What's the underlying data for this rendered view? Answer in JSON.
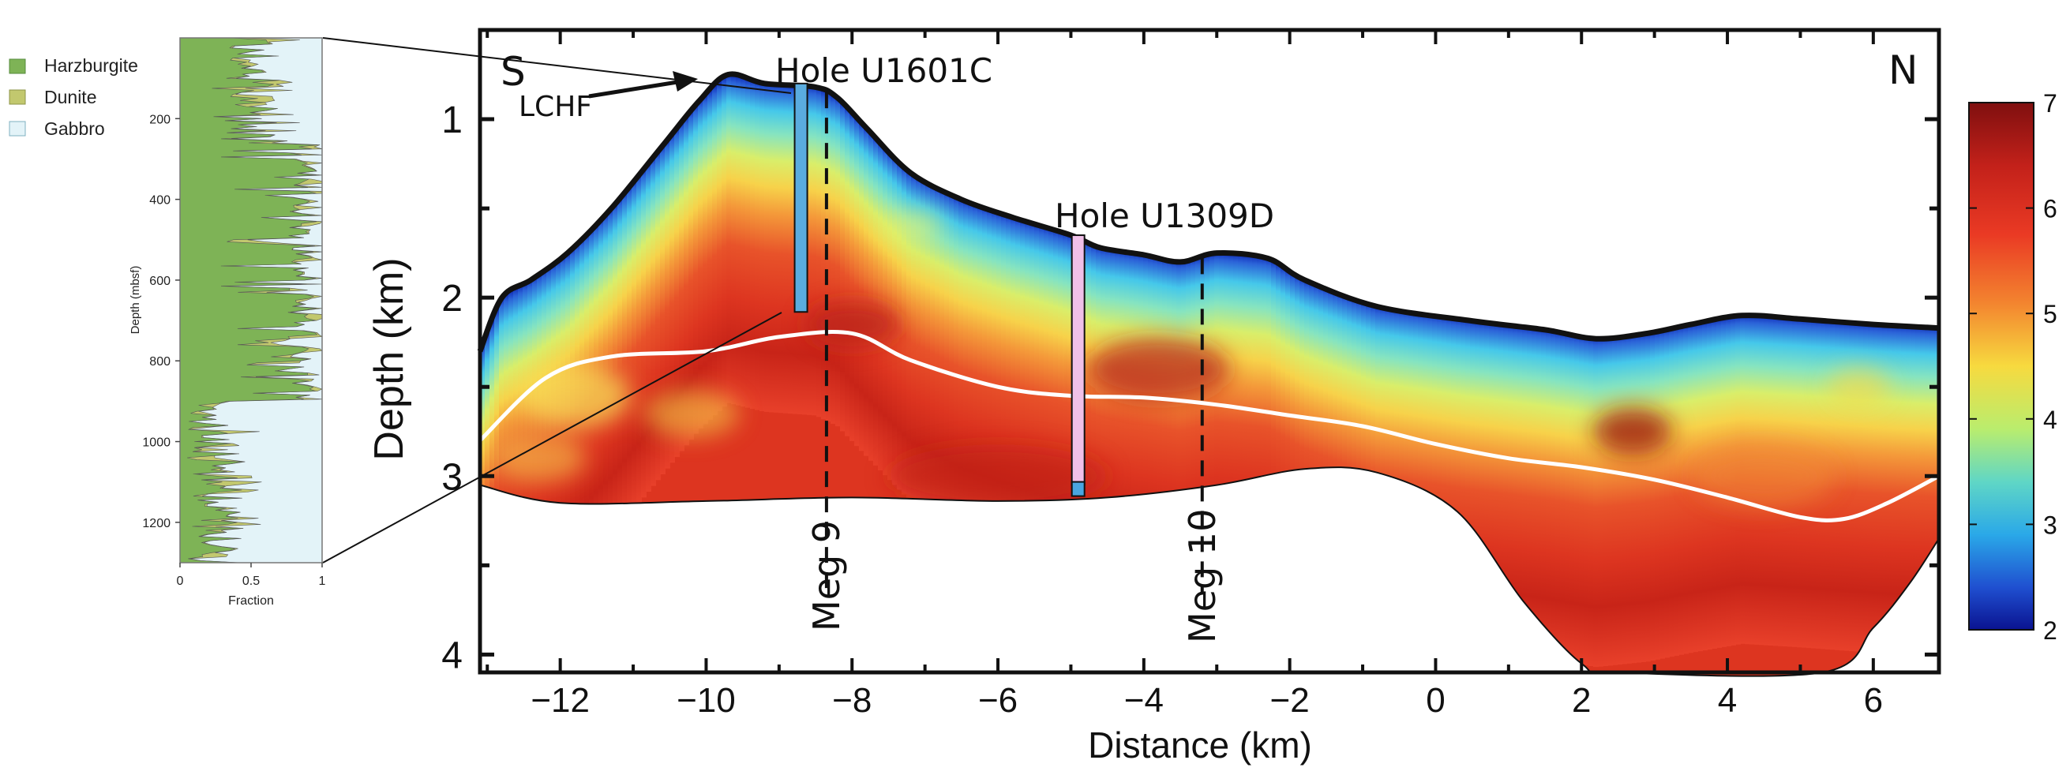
{
  "chart_data": [
    {
      "type": "area",
      "title": "",
      "xlabel": "Fraction",
      "ylabel": "Depth (mbsf)",
      "xlim": [
        0,
        1
      ],
      "ylim": [
        1300,
        0
      ],
      "x_ticks": [
        "0",
        "0.5",
        "1"
      ],
      "y_ticks": [
        "200",
        "400",
        "600",
        "800",
        "1000",
        "1200"
      ],
      "legend": [
        {
          "label": "Harzburgite",
          "color": "#7eb356"
        },
        {
          "label": "Dunite",
          "color": "#c2c86e"
        },
        {
          "label": "Gabbro",
          "color": "#e3f3f8"
        }
      ],
      "series_note": "Stacked lithology fractions vs depth for Hole U1601C"
    },
    {
      "type": "heatmap",
      "title": "",
      "xlabel": "Distance (km)",
      "ylabel": "Depth (km)",
      "xlim": [
        -13.1,
        6.9
      ],
      "ylim": [
        4.1,
        0.5
      ],
      "x_ticks": [
        "−12",
        "−10",
        "−8",
        "−6",
        "−4",
        "−2",
        "0",
        "2",
        "4",
        "6"
      ],
      "y_ticks": [
        "1",
        "2",
        "3",
        "4"
      ],
      "colorbar": {
        "min": 2,
        "max": 7,
        "ticks": [
          "7",
          "6",
          "5",
          "4",
          "3",
          "2"
        ]
      },
      "corner_labels": {
        "left": "S",
        "right": "N"
      },
      "seafloor": [
        [
          -13.1,
          2.3
        ],
        [
          -12.8,
          2.0
        ],
        [
          -12.4,
          1.9
        ],
        [
          -11.9,
          1.75
        ],
        [
          -11.3,
          1.5
        ],
        [
          -10.6,
          1.15
        ],
        [
          -10.1,
          0.9
        ],
        [
          -9.7,
          0.75
        ],
        [
          -9.2,
          0.8
        ],
        [
          -8.5,
          0.82
        ],
        [
          -8.2,
          0.88
        ],
        [
          -7.8,
          1.05
        ],
        [
          -7.2,
          1.3
        ],
        [
          -6.5,
          1.45
        ],
        [
          -5.8,
          1.55
        ],
        [
          -5.0,
          1.65
        ],
        [
          -4.6,
          1.72
        ],
        [
          -4.0,
          1.76
        ],
        [
          -3.5,
          1.8
        ],
        [
          -3.0,
          1.75
        ],
        [
          -2.3,
          1.78
        ],
        [
          -1.8,
          1.9
        ],
        [
          -0.8,
          2.05
        ],
        [
          0.5,
          2.13
        ],
        [
          1.5,
          2.18
        ],
        [
          2.2,
          2.23
        ],
        [
          2.9,
          2.2
        ],
        [
          3.5,
          2.15
        ],
        [
          4.2,
          2.1
        ],
        [
          5.0,
          2.12
        ],
        [
          6.0,
          2.15
        ],
        [
          6.9,
          2.17
        ]
      ],
      "basement": [
        [
          -13.1,
          3.05
        ],
        [
          -12.0,
          3.15
        ],
        [
          -10.0,
          3.14
        ],
        [
          -8.0,
          3.12
        ],
        [
          -6.0,
          3.14
        ],
        [
          -4.5,
          3.12
        ],
        [
          -3.0,
          3.05
        ],
        [
          -1.8,
          2.96
        ],
        [
          -0.8,
          2.98
        ],
        [
          0.3,
          3.2
        ],
        [
          1.2,
          3.7
        ],
        [
          2.0,
          4.05
        ],
        [
          2.5,
          4.1
        ],
        [
          5.3,
          4.1
        ],
        [
          6.0,
          3.85
        ],
        [
          6.5,
          3.6
        ],
        [
          6.9,
          3.35
        ]
      ],
      "white_line": [
        [
          -13.1,
          2.8
        ],
        [
          -12.2,
          2.45
        ],
        [
          -11.3,
          2.33
        ],
        [
          -10.0,
          2.3
        ],
        [
          -9.0,
          2.22
        ],
        [
          -8.0,
          2.2
        ],
        [
          -7.2,
          2.35
        ],
        [
          -6.0,
          2.5
        ],
        [
          -5.0,
          2.55
        ],
        [
          -4.0,
          2.56
        ],
        [
          -3.0,
          2.6
        ],
        [
          -2.0,
          2.66
        ],
        [
          -1.0,
          2.72
        ],
        [
          0.0,
          2.82
        ],
        [
          1.0,
          2.9
        ],
        [
          2.0,
          2.95
        ],
        [
          3.0,
          3.02
        ],
        [
          4.0,
          3.12
        ],
        [
          5.0,
          3.23
        ],
        [
          5.6,
          3.24
        ],
        [
          6.2,
          3.15
        ],
        [
          6.9,
          3.0
        ]
      ],
      "holes": [
        {
          "name": "Hole U1601C",
          "x": -8.7,
          "top": 0.8,
          "bottom": 2.08,
          "color": "#5aacdf"
        },
        {
          "name": "Hole U1309D",
          "x": -4.9,
          "top": 1.65,
          "bottom": 3.05,
          "color": "#f0c0e8"
        }
      ],
      "profiles": [
        {
          "name": "Meg 9",
          "x": -8.35
        },
        {
          "name": "Meg 10",
          "x": -3.2
        }
      ],
      "annotations": [
        {
          "text": "LCHF",
          "x": -10.0,
          "y": 0.75
        }
      ]
    }
  ]
}
